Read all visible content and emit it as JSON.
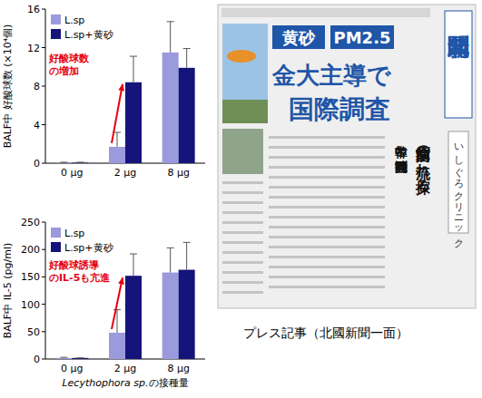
{
  "chart_data": [
    {
      "type": "bar",
      "ylabel": "BALF中 好酸球数 (×10⁴個)",
      "categories": [
        "0 μg",
        "2 μg",
        "8 μg"
      ],
      "series": [
        {
          "name": "L.sp",
          "color": "#9a9adc",
          "values": [
            0.05,
            1.7,
            11.5
          ],
          "errors": [
            0.05,
            1.5,
            3.2
          ]
        },
        {
          "name": "L.sp+黄砂",
          "color": "#14147a",
          "values": [
            0.05,
            8.4,
            9.9
          ],
          "errors": [
            0.05,
            2.7,
            2.0
          ]
        }
      ],
      "ylim": [
        0,
        16
      ],
      "yticks": [
        0,
        4,
        8,
        12,
        16
      ],
      "legend": "upper left",
      "annotation": "好酸球数\nの増加"
    },
    {
      "type": "bar",
      "ylabel": "BALF中 IL-5 (pg/ml)",
      "xlabel": "Lecythophora sp.の接種量",
      "categories": [
        "0 μg",
        "2 μg",
        "8 μg"
      ],
      "series": [
        {
          "name": "L.sp",
          "color": "#9a9adc",
          "values": [
            2,
            48,
            158
          ],
          "errors": [
            1,
            42,
            45
          ]
        },
        {
          "name": "L.sp+黄砂",
          "color": "#14147a",
          "values": [
            2,
            152,
            163
          ],
          "errors": [
            0,
            40,
            50
          ]
        }
      ],
      "ylim": [
        0,
        250
      ],
      "yticks": [
        0,
        50,
        100,
        150,
        200,
        250
      ],
      "legend": "upper left",
      "annotation": "好酸球誘導\nのIL-5も亢進"
    }
  ],
  "press": {
    "caption": "プレス記事（北國新聞一面）",
    "masthead": "北國新聞",
    "headlines": [
      "黄砂",
      "PM2.5",
      "金大主導で",
      "国際調査"
    ],
    "subheads": [
      "中韓と同時観測",
      "病原菌の流れ探る"
    ],
    "ad": "いしぐろクリニック"
  }
}
